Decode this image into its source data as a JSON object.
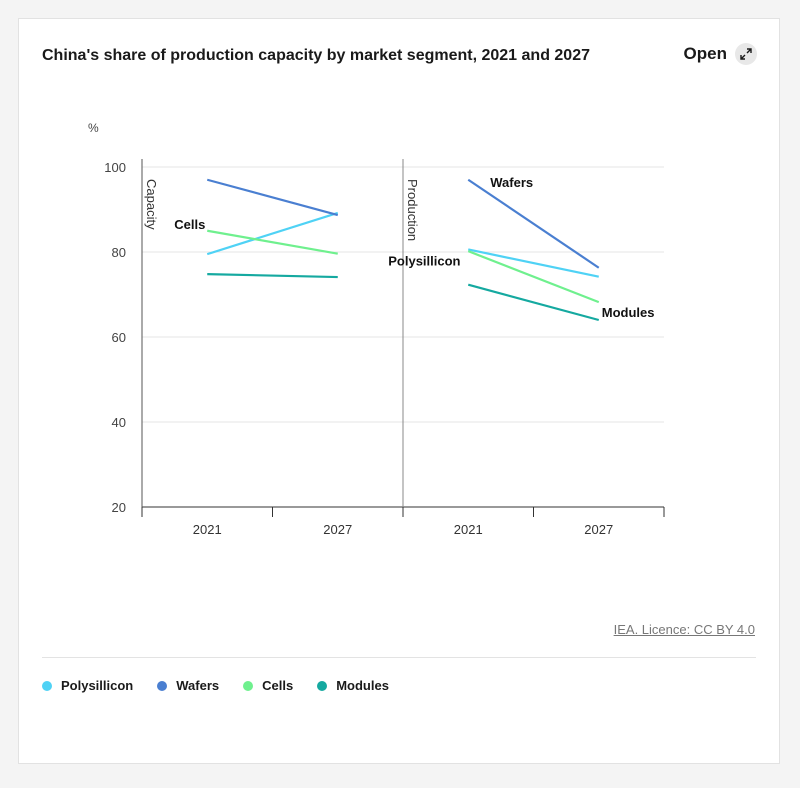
{
  "header": {
    "title": "China's share of production capacity by market segment, 2021 and 2027",
    "open_label": "Open"
  },
  "footer": {
    "licence": "IEA. Licence: CC BY 4.0"
  },
  "colors": {
    "Polysillicon": "#4fd2f5",
    "Wafers": "#4a7fd1",
    "Cells": "#6ff08e",
    "Modules": "#15a9a0"
  },
  "legend": [
    {
      "label": "Polysillicon",
      "color": "#4fd2f5"
    },
    {
      "label": "Wafers",
      "color": "#4a7fd1"
    },
    {
      "label": "Cells",
      "color": "#6ff08e"
    },
    {
      "label": "Modules",
      "color": "#15a9a0"
    }
  ],
  "chart_data": {
    "type": "line",
    "title": "China's share of production capacity by market segment, 2021 and 2027",
    "ylabel": "%",
    "ylim": [
      20,
      100
    ],
    "yticks": [
      20,
      40,
      60,
      80,
      100
    ],
    "categories": [
      "2021",
      "2027"
    ],
    "grid": true,
    "legend_position": "bottom",
    "panels": [
      {
        "name": "Capacity",
        "series": [
          {
            "name": "Polysillicon",
            "values": [
              79.5,
              89.2
            ]
          },
          {
            "name": "Wafers",
            "values": [
              97,
              88.7
            ]
          },
          {
            "name": "Cells",
            "values": [
              85,
              79.6
            ]
          },
          {
            "name": "Modules",
            "values": [
              74.8,
              74.1
            ]
          }
        ],
        "annotations": [
          {
            "text": "Cells",
            "series": "Cells",
            "point": 0
          }
        ]
      },
      {
        "name": "Production",
        "series": [
          {
            "name": "Polysillicon",
            "values": [
              80.6,
              74.2
            ]
          },
          {
            "name": "Wafers",
            "values": [
              97,
              76.3
            ]
          },
          {
            "name": "Cells",
            "values": [
              80.2,
              68.2
            ]
          },
          {
            "name": "Modules",
            "values": [
              72.3,
              64
            ]
          }
        ],
        "annotations": [
          {
            "text": "Wafers",
            "series": "Wafers",
            "point": 0
          },
          {
            "text": "Polysillicon",
            "series": "Polysillicon",
            "point": 0
          },
          {
            "text": "Modules",
            "series": "Modules",
            "point": 1
          }
        ]
      }
    ]
  }
}
